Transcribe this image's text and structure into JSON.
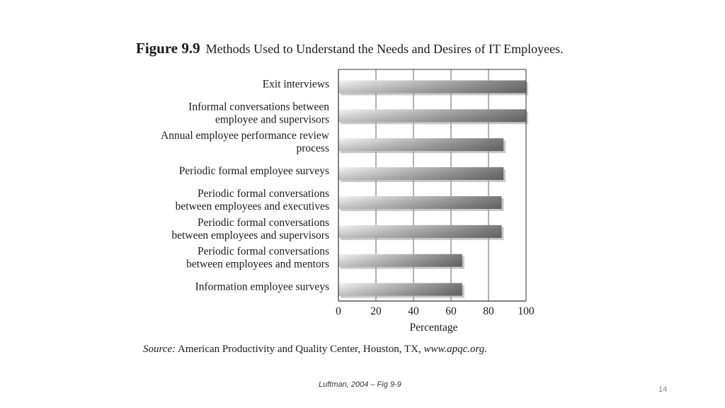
{
  "figure": {
    "number": "Figure 9.9",
    "title": "Methods Used to Understand the Needs and Desires of IT Employees."
  },
  "chart_data": {
    "type": "bar",
    "orientation": "horizontal",
    "categories": [
      [
        "Exit interviews"
      ],
      [
        "Informal conversations between",
        "employee and supervisors"
      ],
      [
        "Annual employee performance review",
        "process"
      ],
      [
        "Periodic formal employee surveys"
      ],
      [
        "Periodic formal conversations",
        "between employees and executives"
      ],
      [
        "Periodic formal conversations",
        "between employees and supervisors"
      ],
      [
        "Periodic formal conversations",
        "between employees and mentors"
      ],
      [
        "Information employee surveys"
      ]
    ],
    "values": [
      100,
      100,
      88,
      88,
      87,
      87,
      66,
      66
    ],
    "xlabel": "Percentage",
    "xlim": [
      0,
      100
    ],
    "xticks": [
      0,
      20,
      40,
      60,
      80,
      100
    ],
    "grid": true,
    "legend": "none",
    "colors": {
      "bar_dark": "#7a7a7a",
      "bar_light": "#f4f4f4",
      "shadow": "#9a9a9a",
      "axis": "#333333"
    }
  },
  "source": {
    "label": "Source:",
    "text": "American Productivity and Quality Center, Houston, TX,",
    "url": "www.apqc.org."
  },
  "footer": {
    "credit": "Luftman, 2004 – Fig 9-9",
    "slide_number": "14"
  }
}
